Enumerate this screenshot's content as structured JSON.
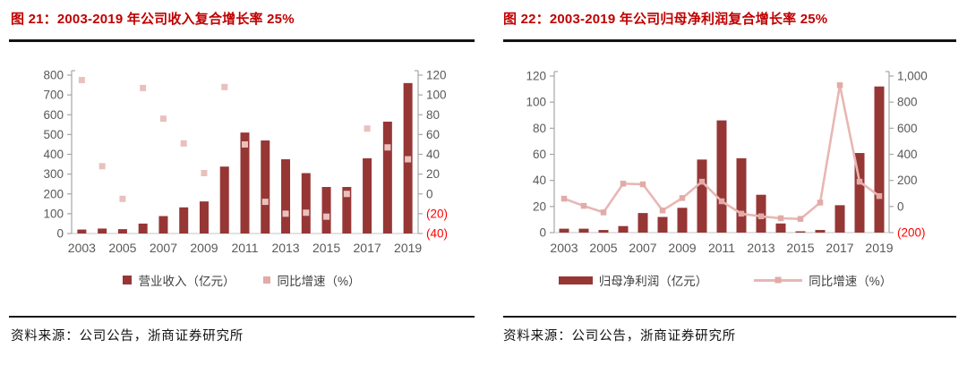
{
  "panels": [
    {
      "title": "图 21：2003-2019 年公司收入复合增长率 25%",
      "legend": [
        {
          "label": "营业收入（亿元）",
          "swatch": "dark-red-square"
        },
        {
          "label": "同比增速（%）",
          "swatch": "pink-square"
        }
      ],
      "source": "资料来源：公司公告，浙商证券研究所"
    },
    {
      "title": "图 22：2003-2019 年公司归母净利润复合增长率 25%",
      "legend": [
        {
          "label": "归母净利润（亿元）",
          "swatch": "dark-red-bar"
        },
        {
          "label": "同比增速（%）",
          "swatch": "pink-line-with-marker"
        }
      ],
      "source": "资料来源：公司公告，浙商证券研究所"
    }
  ],
  "chart_data": [
    {
      "type": "bar",
      "subtype": "bar-with-scatter-overlay",
      "title": "图 21：2003-2019 年公司收入复合增长率 25%",
      "x": [
        2003,
        2004,
        2005,
        2006,
        2007,
        2008,
        2009,
        2010,
        2011,
        2012,
        2013,
        2014,
        2015,
        2016,
        2017,
        2018,
        2019
      ],
      "x_tick_labels": [
        "2003",
        "2005",
        "2007",
        "2009",
        "2011",
        "2013",
        "2015",
        "2017",
        "2019"
      ],
      "series": [
        {
          "name": "营业收入（亿元）",
          "type": "bar",
          "axis": "left",
          "values": [
            20,
            25,
            22,
            50,
            88,
            132,
            162,
            338,
            510,
            470,
            375,
            305,
            235,
            235,
            380,
            565,
            760
          ]
        },
        {
          "name": "同比增速（%）",
          "type": "scatter",
          "axis": "right",
          "values": [
            115,
            28,
            -5,
            107,
            76,
            51,
            21,
            108,
            50,
            -8,
            -20,
            -19,
            -23,
            0,
            66,
            47,
            35
          ]
        }
      ],
      "left_axis": {
        "min": 0,
        "max": 800,
        "step": 100
      },
      "right_axis": {
        "min": -40,
        "max": 120,
        "step": 20
      },
      "negative_label_style": "parentheses-red",
      "grid": false,
      "legend_position": "bottom"
    },
    {
      "type": "bar",
      "subtype": "bar-with-line-overlay",
      "title": "图 22：2003-2019 年公司归母净利润复合增长率 25%",
      "x": [
        2003,
        2004,
        2005,
        2006,
        2007,
        2008,
        2009,
        2010,
        2011,
        2012,
        2013,
        2014,
        2015,
        2016,
        2017,
        2018,
        2019
      ],
      "x_tick_labels": [
        "2003",
        "2005",
        "2007",
        "2009",
        "2011",
        "2013",
        "2015",
        "2017",
        "2019"
      ],
      "series": [
        {
          "name": "归母净利润（亿元）",
          "type": "bar",
          "axis": "left",
          "values": [
            3,
            3,
            2,
            5,
            15,
            12,
            19,
            56,
            86,
            57,
            29,
            7,
            1,
            2,
            21,
            61,
            112
          ]
        },
        {
          "name": "同比增速（%）",
          "type": "line",
          "axis": "right",
          "values": [
            60,
            5,
            -45,
            175,
            170,
            -30,
            65,
            190,
            40,
            -55,
            -75,
            -90,
            -95,
            30,
            930,
            190,
            80
          ]
        }
      ],
      "left_axis": {
        "min": 0,
        "max": 120,
        "step": 20
      },
      "right_axis": {
        "min": -200,
        "max": 1000,
        "step": 200
      },
      "negative_label_style": "parentheses-red",
      "grid": false,
      "legend_position": "bottom"
    }
  ],
  "colors": {
    "title_red": "#c00000",
    "bar": "#963735",
    "scatter": "#e9c0bd",
    "line": "#e8b7b3",
    "marker": "#e2aba7",
    "axis": "#a6a6a6",
    "baseline": "#c6c6c6",
    "tick_text": "#595959",
    "negative_text": "#ff0000",
    "rule": "#141414"
  }
}
